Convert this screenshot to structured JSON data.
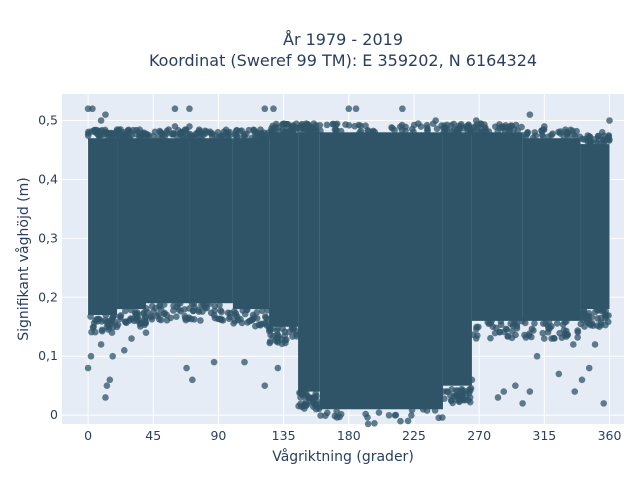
{
  "chart_data": {
    "type": "scatter",
    "title_line1": "År 1979 - 2019",
    "title_line2": "Koordinat (Sweref 99 TM): E 359202, N 6164324",
    "xlabel": "Vågriktning (grader)",
    "ylabel": "Signifikant våghöjd (m)",
    "xlim": [
      -18,
      370
    ],
    "ylim": [
      -0.015,
      0.545
    ],
    "x_ticks": [
      0,
      45,
      90,
      135,
      180,
      225,
      270,
      315,
      360
    ],
    "x_tick_labels": [
      "0",
      "45",
      "90",
      "135",
      "180",
      "225",
      "270",
      "315",
      "360"
    ],
    "y_ticks": [
      0,
      0.1,
      0.2,
      0.3,
      0.4,
      0.5
    ],
    "y_tick_labels": [
      "0",
      "0,1",
      "0,2",
      "0,3",
      "0,4",
      "0,5"
    ],
    "grid": true,
    "marker_color": "#2f5468",
    "plot_background": "#e5ecf6",
    "dense_region_bands": [
      {
        "x_range": [
          0,
          20
        ],
        "y_range": [
          0.17,
          0.47
        ]
      },
      {
        "x_range": [
          20,
          40
        ],
        "y_range": [
          0.18,
          0.47
        ]
      },
      {
        "x_range": [
          40,
          70
        ],
        "y_range": [
          0.19,
          0.47
        ]
      },
      {
        "x_range": [
          70,
          100
        ],
        "y_range": [
          0.19,
          0.47
        ]
      },
      {
        "x_range": [
          100,
          125
        ],
        "y_range": [
          0.18,
          0.47
        ]
      },
      {
        "x_range": [
          125,
          145
        ],
        "y_range": [
          0.15,
          0.48
        ]
      },
      {
        "x_range": [
          145,
          160
        ],
        "y_range": [
          0.04,
          0.48
        ]
      },
      {
        "x_range": [
          160,
          245
        ],
        "y_range": [
          0.01,
          0.48
        ]
      },
      {
        "x_range": [
          245,
          265
        ],
        "y_range": [
          0.05,
          0.48
        ]
      },
      {
        "x_range": [
          265,
          300
        ],
        "y_range": [
          0.16,
          0.48
        ]
      },
      {
        "x_range": [
          300,
          340
        ],
        "y_range": [
          0.16,
          0.47
        ]
      },
      {
        "x_range": [
          340,
          360
        ],
        "y_range": [
          0.18,
          0.46
        ]
      }
    ],
    "outlier_points": [
      [
        0,
        0.52
      ],
      [
        3,
        0.52
      ],
      [
        9,
        0.5
      ],
      [
        12,
        0.51
      ],
      [
        60,
        0.52
      ],
      [
        70,
        0.52
      ],
      [
        60,
        0.49
      ],
      [
        70,
        0.49
      ],
      [
        122,
        0.52
      ],
      [
        128,
        0.52
      ],
      [
        180,
        0.52
      ],
      [
        185,
        0.52
      ],
      [
        217,
        0.52
      ],
      [
        240,
        0.5
      ],
      [
        268,
        0.5
      ],
      [
        305,
        0.51
      ],
      [
        315,
        0.49
      ],
      [
        360,
        0.5
      ],
      [
        355,
        0.48
      ],
      [
        2,
        0.1
      ],
      [
        0,
        0.08
      ],
      [
        12,
        0.03
      ],
      [
        13,
        0.05
      ],
      [
        15,
        0.06
      ],
      [
        68,
        0.08
      ],
      [
        72,
        0.06
      ],
      [
        87,
        0.09
      ],
      [
        108,
        0.09
      ],
      [
        122,
        0.05
      ],
      [
        131,
        0.08
      ],
      [
        265,
        0.06
      ],
      [
        283,
        0.03
      ],
      [
        287,
        0.04
      ],
      [
        295,
        0.05
      ],
      [
        300,
        0.02
      ],
      [
        305,
        0.04
      ],
      [
        325,
        0.07
      ],
      [
        336,
        0.04
      ],
      [
        341,
        0.06
      ],
      [
        346,
        0.08
      ],
      [
        356,
        0.02
      ],
      [
        30,
        0.13
      ],
      [
        40,
        0.14
      ],
      [
        25,
        0.11
      ],
      [
        17,
        0.1
      ],
      [
        9,
        0.12
      ],
      [
        335,
        0.12
      ],
      [
        320,
        0.13
      ],
      [
        310,
        0.1
      ],
      [
        350,
        0.12
      ]
    ]
  }
}
